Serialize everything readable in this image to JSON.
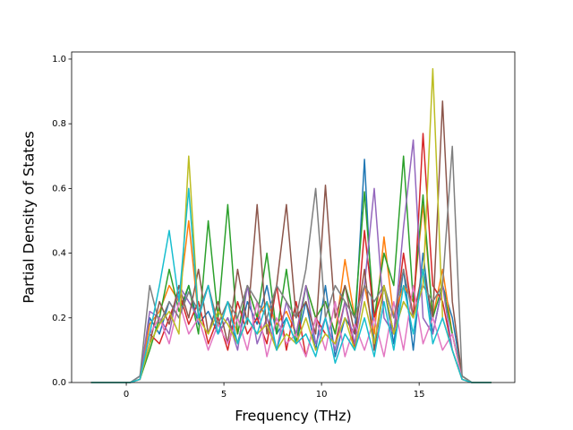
{
  "chart_data": {
    "type": "line",
    "xlabel": "Frequency (THz)",
    "ylabel": "Partial Density of States",
    "x": [
      -1.8,
      -1.3,
      -0.8,
      -0.3,
      0.2,
      0.7,
      1.2,
      1.7,
      2.2,
      2.7,
      3.2,
      3.7,
      4.2,
      4.7,
      5.2,
      5.7,
      6.2,
      6.7,
      7.2,
      7.7,
      8.2,
      8.7,
      9.2,
      9.7,
      10.2,
      10.7,
      11.2,
      11.7,
      12.2,
      12.7,
      13.2,
      13.7,
      14.2,
      14.7,
      15.2,
      15.7,
      16.2,
      16.7,
      17.2,
      17.7,
      18.2,
      18.7
    ],
    "series": [
      {
        "color": "#1f77b4",
        "values": [
          0,
          0,
          0,
          0,
          0,
          0.02,
          0.2,
          0.15,
          0.25,
          0.2,
          0.3,
          0.18,
          0.22,
          0.15,
          0.2,
          0.12,
          0.25,
          0.18,
          0.3,
          0.15,
          0.2,
          0.12,
          0.25,
          0.1,
          0.3,
          0.08,
          0.2,
          0.15,
          0.69,
          0.1,
          0.3,
          0.12,
          0.35,
          0.1,
          0.4,
          0.15,
          0.3,
          0.2,
          0.02,
          0,
          0,
          0
        ]
      },
      {
        "color": "#ff7f0e",
        "values": [
          0,
          0,
          0,
          0,
          0,
          0.01,
          0.18,
          0.22,
          0.3,
          0.25,
          0.5,
          0.2,
          0.3,
          0.18,
          0.25,
          0.15,
          0.3,
          0.2,
          0.25,
          0.18,
          0.22,
          0.15,
          0.3,
          0.2,
          0.25,
          0.15,
          0.38,
          0.2,
          0.3,
          0.15,
          0.45,
          0.2,
          0.3,
          0.25,
          0.55,
          0.2,
          0.35,
          0.15,
          0.01,
          0,
          0,
          0
        ]
      },
      {
        "color": "#2ca02c",
        "values": [
          0,
          0,
          0,
          0,
          0,
          0.01,
          0.1,
          0.2,
          0.35,
          0.22,
          0.3,
          0.15,
          0.5,
          0.2,
          0.55,
          0.15,
          0.3,
          0.2,
          0.4,
          0.15,
          0.35,
          0.12,
          0.3,
          0.2,
          0.25,
          0.15,
          0.3,
          0.2,
          0.59,
          0.2,
          0.4,
          0.3,
          0.7,
          0.25,
          0.58,
          0.2,
          0.3,
          0.15,
          0.02,
          0,
          0,
          0
        ]
      },
      {
        "color": "#d62728",
        "values": [
          0,
          0,
          0,
          0,
          0,
          0.01,
          0.15,
          0.12,
          0.2,
          0.28,
          0.18,
          0.25,
          0.12,
          0.2,
          0.1,
          0.25,
          0.15,
          0.2,
          0.12,
          0.3,
          0.1,
          0.25,
          0.08,
          0.2,
          0.15,
          0.12,
          0.25,
          0.1,
          0.47,
          0.2,
          0.3,
          0.15,
          0.4,
          0.2,
          0.77,
          0.3,
          0.25,
          0.1,
          0.01,
          0,
          0,
          0
        ]
      },
      {
        "color": "#9467bd",
        "values": [
          0,
          0,
          0,
          0,
          0,
          0.01,
          0.22,
          0.2,
          0.15,
          0.3,
          0.25,
          0.2,
          0.3,
          0.15,
          0.2,
          0.1,
          0.3,
          0.12,
          0.2,
          0.1,
          0.25,
          0.15,
          0.3,
          0.12,
          0.2,
          0.1,
          0.25,
          0.12,
          0.3,
          0.6,
          0.2,
          0.15,
          0.48,
          0.75,
          0.2,
          0.15,
          0.3,
          0.1,
          0.01,
          0,
          0,
          0
        ]
      },
      {
        "color": "#8c564b",
        "values": [
          0,
          0,
          0,
          0,
          0,
          0.01,
          0.12,
          0.25,
          0.18,
          0.3,
          0.2,
          0.35,
          0.15,
          0.25,
          0.12,
          0.35,
          0.18,
          0.55,
          0.15,
          0.3,
          0.55,
          0.2,
          0.25,
          0.15,
          0.61,
          0.2,
          0.3,
          0.15,
          0.35,
          0.1,
          0.3,
          0.15,
          0.25,
          0.2,
          0.35,
          0.2,
          0.87,
          0.25,
          0.02,
          0,
          0,
          0
        ]
      },
      {
        "color": "#e377c2",
        "values": [
          0,
          0,
          0,
          0,
          0,
          0.01,
          0.15,
          0.2,
          0.12,
          0.25,
          0.15,
          0.2,
          0.1,
          0.18,
          0.12,
          0.2,
          0.1,
          0.25,
          0.08,
          0.2,
          0.12,
          0.15,
          0.08,
          0.2,
          0.1,
          0.25,
          0.08,
          0.18,
          0.1,
          0.2,
          0.08,
          0.25,
          0.1,
          0.3,
          0.12,
          0.2,
          0.1,
          0.15,
          0.01,
          0,
          0,
          0
        ]
      },
      {
        "color": "#7f7f7f",
        "values": [
          0,
          0,
          0,
          0,
          0,
          0.02,
          0.3,
          0.18,
          0.25,
          0.2,
          0.28,
          0.22,
          0.3,
          0.18,
          0.25,
          0.2,
          0.3,
          0.25,
          0.2,
          0.3,
          0.25,
          0.2,
          0.35,
          0.6,
          0.2,
          0.3,
          0.25,
          0.2,
          0.3,
          0.25,
          0.3,
          0.2,
          0.35,
          0.2,
          0.3,
          0.25,
          0.3,
          0.73,
          0.02,
          0,
          0,
          0
        ]
      },
      {
        "color": "#bcbd22",
        "values": [
          0,
          0,
          0,
          0,
          0,
          0.01,
          0.12,
          0.18,
          0.22,
          0.15,
          0.7,
          0.2,
          0.15,
          0.22,
          0.18,
          0.12,
          0.2,
          0.15,
          0.18,
          0.1,
          0.15,
          0.12,
          0.2,
          0.1,
          0.15,
          0.12,
          0.2,
          0.1,
          0.25,
          0.12,
          0.3,
          0.15,
          0.25,
          0.2,
          0.3,
          0.97,
          0.2,
          0.1,
          0.01,
          0,
          0,
          0
        ]
      },
      {
        "color": "#17becf",
        "values": [
          0,
          0,
          0,
          0,
          0,
          0.01,
          0.15,
          0.3,
          0.47,
          0.25,
          0.6,
          0.2,
          0.3,
          0.15,
          0.25,
          0.12,
          0.2,
          0.15,
          0.25,
          0.1,
          0.2,
          0.12,
          0.15,
          0.08,
          0.2,
          0.06,
          0.15,
          0.1,
          0.2,
          0.08,
          0.25,
          0.1,
          0.3,
          0.15,
          0.35,
          0.12,
          0.2,
          0.1,
          0.01,
          0,
          0,
          0
        ]
      }
    ],
    "xlim": [
      -2.8,
      19.9
    ],
    "xticks": [
      0,
      5,
      10,
      15
    ],
    "ylim": [
      0,
      1.022
    ],
    "yticks": [
      {
        "value": 0,
        "label": "0.0"
      },
      0.2,
      0.4,
      0.6,
      0.8,
      {
        "value": 1,
        "label": "1.0"
      }
    ]
  }
}
